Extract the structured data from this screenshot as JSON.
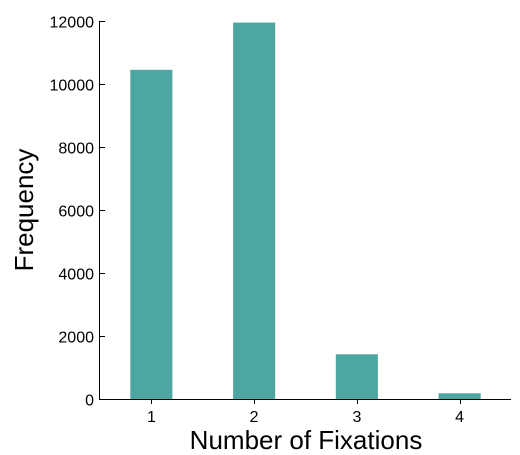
{
  "chart_data": {
    "type": "bar",
    "title": "",
    "xlabel": "Number of Fixations",
    "ylabel": "Frequency",
    "categories": [
      "1",
      "2",
      "3",
      "4"
    ],
    "values": [
      10450,
      11950,
      1420,
      180
    ],
    "ylim": [
      0,
      12000
    ],
    "yticks": [
      "0",
      "2000",
      "4000",
      "6000",
      "8000",
      "10000",
      "12000"
    ],
    "grid": false,
    "legend": "none",
    "bar_color": "#4ea6a3"
  }
}
